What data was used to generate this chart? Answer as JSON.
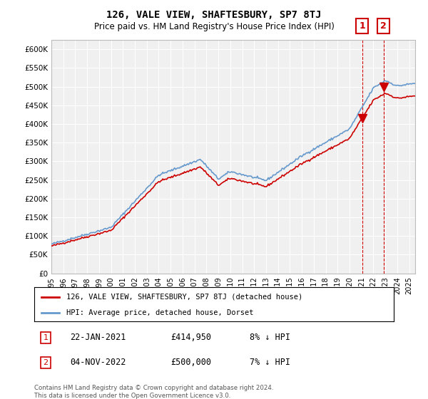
{
  "title": "126, VALE VIEW, SHAFTESBURY, SP7 8TJ",
  "subtitle": "Price paid vs. HM Land Registry's House Price Index (HPI)",
  "legend_line1": "126, VALE VIEW, SHAFTESBURY, SP7 8TJ (detached house)",
  "legend_line2": "HPI: Average price, detached house, Dorset",
  "footnote": "Contains HM Land Registry data © Crown copyright and database right 2024.\nThis data is licensed under the Open Government Licence v3.0.",
  "annotation1_label": "1",
  "annotation1_date": "22-JAN-2021",
  "annotation1_price": "£414,950",
  "annotation1_hpi": "8% ↓ HPI",
  "annotation2_label": "2",
  "annotation2_date": "04-NOV-2022",
  "annotation2_price": "£500,000",
  "annotation2_hpi": "7% ↓ HPI",
  "hpi_color": "#6699cc",
  "price_color": "#cc0000",
  "annotation_box_color": "#cc0000",
  "background_color": "#ffffff",
  "plot_bg_color": "#f0f0f0",
  "grid_color": "#ffffff",
  "ylim": [
    0,
    625000
  ],
  "yticks": [
    0,
    50000,
    100000,
    150000,
    200000,
    250000,
    300000,
    350000,
    400000,
    450000,
    500000,
    550000,
    600000
  ],
  "sale1_x": 2021.05,
  "sale1_y": 414950,
  "sale2_x": 2022.84,
  "sale2_y": 500000,
  "xmin": 1995.0,
  "xmax": 2025.5
}
